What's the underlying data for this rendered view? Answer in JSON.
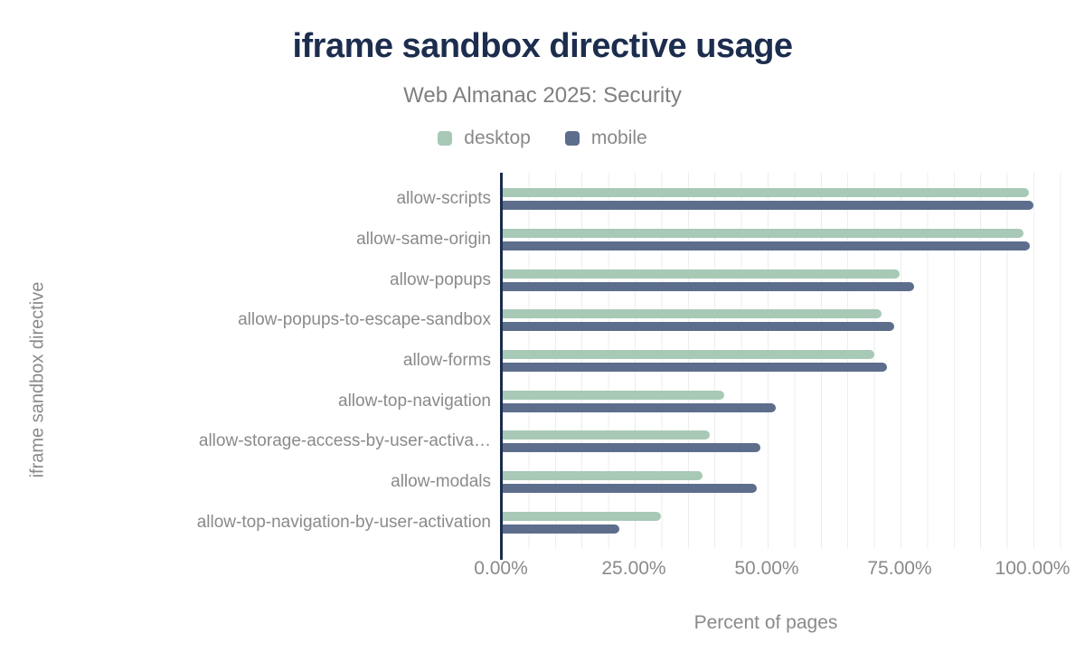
{
  "header": {
    "title": "iframe sandbox directive usage",
    "subtitle": "Web Almanac 2025: Security"
  },
  "legend": [
    {
      "label": "desktop",
      "color": "#a7c9b6"
    },
    {
      "label": "mobile",
      "color": "#5d6e8c"
    }
  ],
  "axes": {
    "y_title": "iframe sandbox directive",
    "x_title": "Percent of pages",
    "x_ticks": [
      "0.00%",
      "25.00%",
      "50.00%",
      "75.00%",
      "100.00%"
    ]
  },
  "chart_data": {
    "type": "bar",
    "orientation": "horizontal",
    "title": "iframe sandbox directive usage",
    "subtitle": "Web Almanac 2025: Security",
    "xlabel": "Percent of pages",
    "ylabel": "iframe sandbox directive",
    "xlim": [
      0,
      100
    ],
    "x_tick_labels": [
      "0.00%",
      "25.00%",
      "50.00%",
      "75.00%",
      "100.00%"
    ],
    "grid": "vertical gridlines every 5%",
    "legend_position": "top-center",
    "categories": [
      "allow-scripts",
      "allow-same-origin",
      "allow-popups",
      "allow-popups-to-escape-sandbox",
      "allow-forms",
      "allow-top-navigation",
      "allow-storage-access-by-user-activation",
      "allow-modals",
      "allow-top-navigation-by-user-activation"
    ],
    "display_categories": [
      "allow-scripts",
      "allow-same-origin",
      "allow-popups",
      "allow-popups-to-escape-sandbox",
      "allow-forms",
      "allow-top-navigation",
      "allow-storage-access-by-user-activa…",
      "allow-modals",
      "allow-top-navigation-by-user-activation"
    ],
    "series": [
      {
        "name": "desktop",
        "color": "#a7c9b6",
        "values": [
          99.0,
          98.0,
          74.6,
          71.2,
          69.9,
          41.7,
          38.9,
          37.5,
          29.7
        ]
      },
      {
        "name": "mobile",
        "color": "#5d6e8c",
        "values": [
          99.8,
          99.2,
          77.3,
          73.6,
          72.3,
          51.4,
          48.5,
          47.8,
          22.0
        ]
      }
    ]
  }
}
